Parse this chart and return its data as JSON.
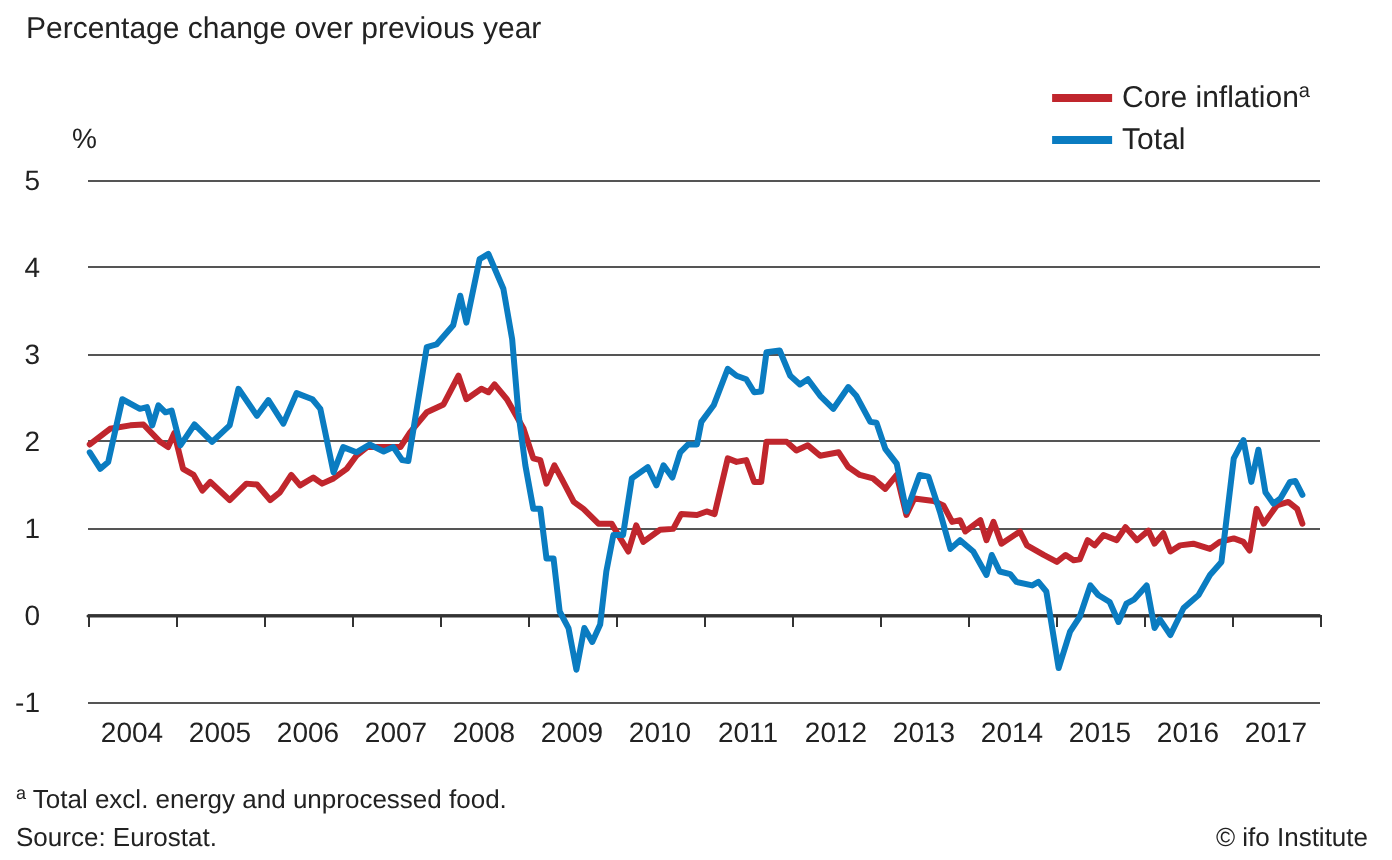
{
  "chart_data": {
    "type": "line",
    "title": "Percentage change over previous year",
    "ylabel": "%",
    "xlim": [
      2004,
      2018
    ],
    "xticks": [
      {
        "value": 2004,
        "label": null
      },
      {
        "value": 2004.5,
        "label": "2004"
      },
      {
        "value": 2005,
        "label": null
      },
      {
        "value": 2005.5,
        "label": "2005"
      },
      {
        "value": 2006,
        "label": null
      },
      {
        "value": 2006.5,
        "label": "2006"
      },
      {
        "value": 2007,
        "label": null
      },
      {
        "value": 2007.5,
        "label": "2007"
      },
      {
        "value": 2008,
        "label": null
      },
      {
        "value": 2008.5,
        "label": "2008"
      },
      {
        "value": 2009,
        "label": null
      },
      {
        "value": 2009.5,
        "label": "2009"
      },
      {
        "value": 2010,
        "label": null
      },
      {
        "value": 2010.5,
        "label": "2010"
      },
      {
        "value": 2011,
        "label": null
      },
      {
        "value": 2011.5,
        "label": "2011"
      },
      {
        "value": 2012,
        "label": null
      },
      {
        "value": 2012.5,
        "label": "2012"
      },
      {
        "value": 2013,
        "label": null
      },
      {
        "value": 2013.5,
        "label": "2013"
      },
      {
        "value": 2014,
        "label": null
      },
      {
        "value": 2014.5,
        "label": "2014"
      },
      {
        "value": 2015,
        "label": null
      },
      {
        "value": 2015.5,
        "label": "2015"
      },
      {
        "value": 2016,
        "label": null
      },
      {
        "value": 2016.5,
        "label": "2016"
      },
      {
        "value": 2017,
        "label": null
      },
      {
        "value": 2017.5,
        "label": "2017"
      },
      {
        "value": 2018,
        "label": null
      }
    ],
    "ylim": [
      -1,
      5
    ],
    "yticks": [
      -1,
      0,
      1,
      2,
      3,
      4,
      5
    ],
    "grid": "y",
    "legend": "top right",
    "marker": "none",
    "line_style": "solid",
    "annotations": [
      "$^{a}$ Total excl. energy and unprocessed food.",
      "Source: Eurostat.",
      "© ifo Institute"
    ],
    "series": [
      {
        "name": "Core inflation$^{a}$",
        "color": "#c0262d",
        "x": [
          2004.02,
          2004.25,
          2004.48,
          2004.63,
          2004.82,
          2004.91,
          2004.98,
          2005.08,
          2005.2,
          2005.3,
          2005.39,
          2005.61,
          2005.8,
          2005.92,
          2006.07,
          2006.18,
          2006.31,
          2006.41,
          2006.56,
          2006.66,
          2006.79,
          2006.94,
          2007.05,
          2007.17,
          2007.36,
          2007.55,
          2007.66,
          2007.85,
          2008.04,
          2008.21,
          2008.3,
          2008.47,
          2008.55,
          2008.62,
          2008.76,
          2008.95,
          2009.06,
          2009.14,
          2009.21,
          2009.3,
          2009.38,
          2009.52,
          2009.63,
          2009.8,
          2009.95,
          2010.05,
          2010.14,
          2010.23,
          2010.31,
          2010.5,
          2010.65,
          2010.74,
          2010.92,
          2011.03,
          2011.12,
          2011.27,
          2011.37,
          2011.48,
          2011.57,
          2011.65,
          2011.71,
          2011.94,
          2012.05,
          2012.18,
          2012.32,
          2012.53,
          2012.64,
          2012.77,
          2012.92,
          2013.06,
          2013.19,
          2013.3,
          2013.39,
          2013.61,
          2013.72,
          2013.82,
          2013.91,
          2013.97,
          2014.14,
          2014.21,
          2014.29,
          2014.38,
          2014.59,
          2014.67,
          2014.86,
          2015.01,
          2015.11,
          2015.2,
          2015.27,
          2015.36,
          2015.44,
          2015.54,
          2015.69,
          2015.79,
          2015.92,
          2016.05,
          2016.12,
          2016.22,
          2016.3,
          2016.41,
          2016.56,
          2016.75,
          2016.86,
          2017.02,
          2017.13,
          2017.2,
          2017.28,
          2017.36,
          2017.51,
          2017.64,
          2017.74,
          2017.8
        ],
        "values": [
          1.96,
          2.14,
          2.18,
          2.19,
          1.99,
          1.93,
          2.09,
          1.68,
          1.61,
          1.43,
          1.53,
          1.32,
          1.51,
          1.5,
          1.32,
          1.41,
          1.61,
          1.49,
          1.58,
          1.51,
          1.57,
          1.68,
          1.83,
          1.93,
          1.93,
          1.93,
          2.1,
          2.33,
          2.42,
          2.75,
          2.48,
          2.6,
          2.56,
          2.65,
          2.48,
          2.14,
          1.8,
          1.78,
          1.51,
          1.72,
          1.57,
          1.3,
          1.22,
          1.05,
          1.05,
          0.88,
          0.73,
          1.03,
          0.84,
          0.98,
          0.99,
          1.16,
          1.15,
          1.19,
          1.16,
          1.8,
          1.76,
          1.78,
          1.53,
          1.53,
          1.99,
          1.99,
          1.89,
          1.95,
          1.83,
          1.87,
          1.7,
          1.61,
          1.57,
          1.45,
          1.61,
          1.15,
          1.34,
          1.31,
          1.26,
          1.07,
          1.09,
          0.96,
          1.09,
          0.86,
          1.07,
          0.82,
          0.96,
          0.8,
          0.69,
          0.61,
          0.69,
          0.63,
          0.64,
          0.86,
          0.8,
          0.92,
          0.86,
          1.01,
          0.86,
          0.97,
          0.82,
          0.94,
          0.73,
          0.8,
          0.82,
          0.76,
          0.84,
          0.88,
          0.84,
          0.74,
          1.22,
          1.05,
          1.26,
          1.3,
          1.22,
          1.05
        ]
      },
      {
        "name": "Total",
        "color": "#0a7cc1",
        "x": [
          2004.02,
          2004.14,
          2004.23,
          2004.39,
          2004.59,
          2004.67,
          2004.73,
          2004.8,
          2004.88,
          2004.95,
          2005.05,
          2005.21,
          2005.41,
          2005.61,
          2005.71,
          2005.92,
          2006.05,
          2006.22,
          2006.37,
          2006.55,
          2006.64,
          2006.71,
          2006.79,
          2006.9,
          2007.05,
          2007.2,
          2007.36,
          2007.47,
          2007.57,
          2007.64,
          2007.85,
          2007.96,
          2008.15,
          2008.23,
          2008.3,
          2008.45,
          2008.55,
          2008.72,
          2008.82,
          2008.89,
          2008.97,
          2009.06,
          2009.14,
          2009.21,
          2009.29,
          2009.36,
          2009.46,
          2009.55,
          2009.64,
          2009.73,
          2009.82,
          2009.89,
          2009.97,
          2010.08,
          2010.18,
          2010.36,
          2010.46,
          2010.54,
          2010.64,
          2010.73,
          2010.82,
          2010.92,
          2010.97,
          2011.11,
          2011.27,
          2011.37,
          2011.48,
          2011.57,
          2011.65,
          2011.71,
          2011.86,
          2011.98,
          2012.09,
          2012.18,
          2012.32,
          2012.47,
          2012.64,
          2012.73,
          2012.89,
          2012.96,
          2013.06,
          2013.19,
          2013.3,
          2013.45,
          2013.55,
          2013.68,
          2013.8,
          2013.91,
          2014.06,
          2014.21,
          2014.27,
          2014.36,
          2014.48,
          2014.55,
          2014.73,
          2014.8,
          2014.89,
          2015.03,
          2015.16,
          2015.27,
          2015.39,
          2015.48,
          2015.61,
          2015.71,
          2015.8,
          2015.89,
          2016.03,
          2016.12,
          2016.18,
          2016.3,
          2016.45,
          2016.62,
          2016.75,
          2016.88,
          2017.02,
          2017.13,
          2017.22,
          2017.3,
          2017.38,
          2017.47,
          2017.55,
          2017.66,
          2017.72,
          2017.8
        ],
        "values": [
          1.87,
          1.68,
          1.76,
          2.48,
          2.37,
          2.39,
          2.18,
          2.41,
          2.33,
          2.35,
          1.95,
          2.19,
          1.99,
          2.18,
          2.6,
          2.29,
          2.47,
          2.2,
          2.55,
          2.48,
          2.37,
          2.03,
          1.64,
          1.93,
          1.87,
          1.96,
          1.88,
          1.93,
          1.78,
          1.77,
          3.08,
          3.11,
          3.33,
          3.67,
          3.36,
          4.09,
          4.15,
          3.75,
          3.17,
          2.33,
          1.72,
          1.22,
          1.22,
          0.65,
          0.65,
          0.04,
          -0.15,
          -0.63,
          -0.15,
          -0.31,
          -0.11,
          0.5,
          0.92,
          0.92,
          1.57,
          1.7,
          1.49,
          1.72,
          1.58,
          1.87,
          1.96,
          1.96,
          2.22,
          2.41,
          2.83,
          2.75,
          2.71,
          2.56,
          2.57,
          3.02,
          3.04,
          2.75,
          2.65,
          2.71,
          2.52,
          2.37,
          2.62,
          2.52,
          2.22,
          2.21,
          1.91,
          1.74,
          1.19,
          1.61,
          1.59,
          1.19,
          0.76,
          0.86,
          0.73,
          0.46,
          0.69,
          0.5,
          0.47,
          0.38,
          0.34,
          0.38,
          0.27,
          -0.61,
          -0.19,
          -0.02,
          0.34,
          0.23,
          0.15,
          -0.08,
          0.13,
          0.18,
          0.34,
          -0.15,
          -0.05,
          -0.23,
          0.08,
          0.23,
          0.46,
          0.61,
          1.8,
          2.01,
          1.53,
          1.9,
          1.41,
          1.28,
          1.34,
          1.53,
          1.54,
          1.38
        ]
      }
    ]
  }
}
